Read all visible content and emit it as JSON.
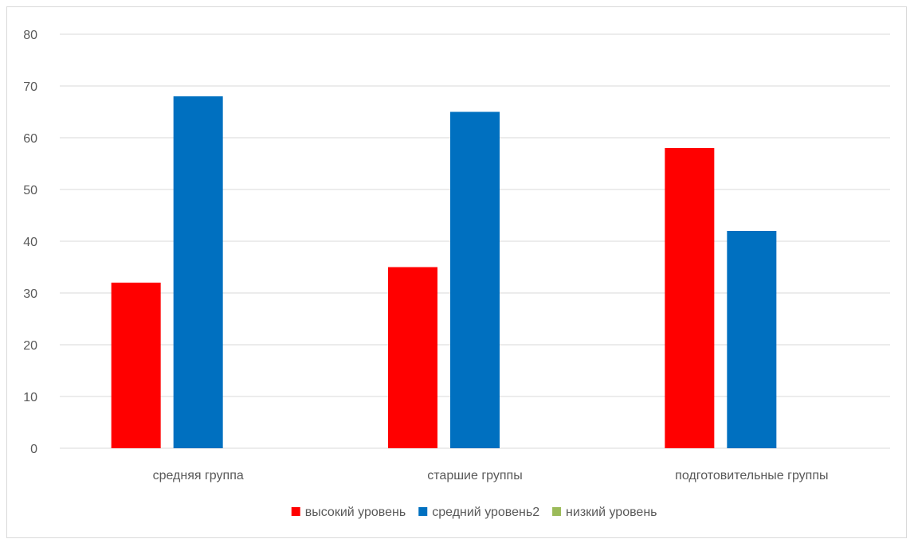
{
  "chart_data": {
    "type": "bar",
    "categories": [
      "средняя группа",
      "старшие группы",
      "подготовительные группы"
    ],
    "series": [
      {
        "name": "высокий уровень",
        "values": [
          32,
          35,
          58
        ],
        "color": "#ff0000"
      },
      {
        "name": "средний уровень2",
        "values": [
          68,
          65,
          42
        ],
        "color": "#0070c0"
      },
      {
        "name": "низкий уровень",
        "values": [
          0,
          0,
          0
        ],
        "color": "#9bbb59"
      }
    ],
    "ylim": [
      0,
      80
    ],
    "yticks": [
      0,
      10,
      20,
      30,
      40,
      50,
      60,
      70,
      80
    ],
    "grid": true,
    "legend_position": "bottom",
    "title": "",
    "xlabel": "",
    "ylabel": ""
  }
}
